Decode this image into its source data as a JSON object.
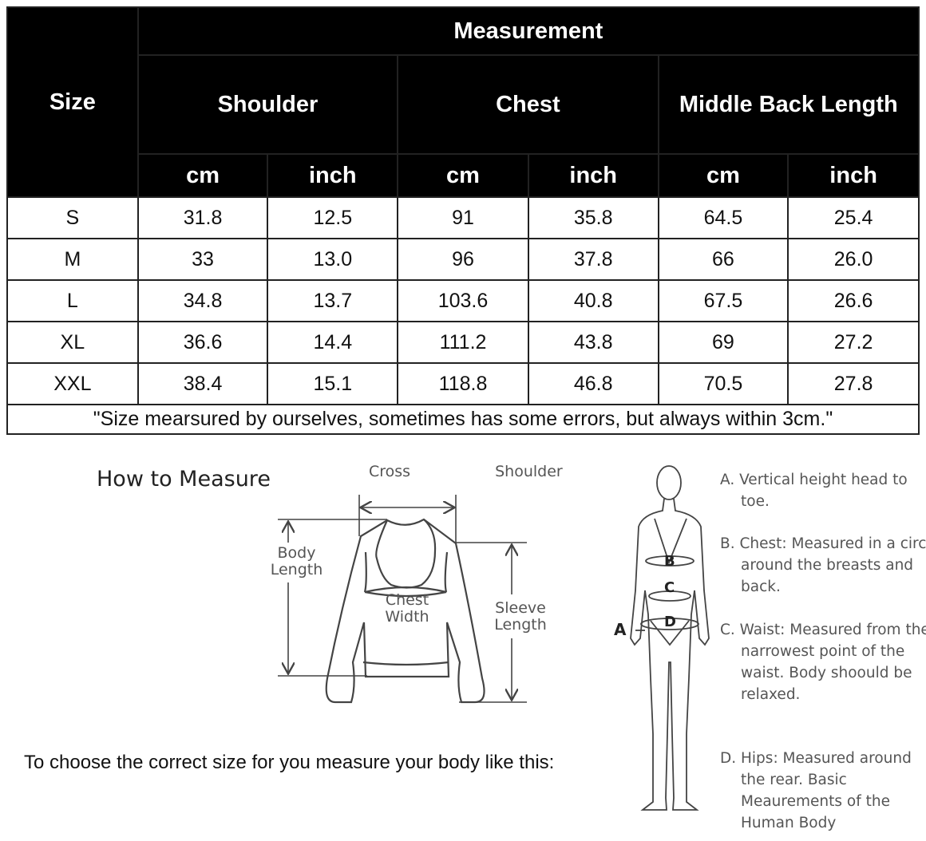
{
  "table": {
    "size_header": "Size",
    "measurement_header": "Measurement",
    "groups": [
      "Shoulder",
      "Chest",
      "Middle Back Length"
    ],
    "units": [
      "cm",
      "inch",
      "cm",
      "inch",
      "cm",
      "inch"
    ],
    "rows": [
      [
        "S",
        "31.8",
        "12.5",
        "91",
        "35.8",
        "64.5",
        "25.4"
      ],
      [
        "M",
        "33",
        "13.0",
        "96",
        "37.8",
        "66",
        "26.0"
      ],
      [
        "L",
        "34.8",
        "13.7",
        "103.6",
        "40.8",
        "67.5",
        "26.6"
      ],
      [
        "XL",
        "36.6",
        "14.4",
        "111.2",
        "43.8",
        "69",
        "27.2"
      ],
      [
        "XXL",
        "38.4",
        "15.1",
        "118.8",
        "46.8",
        "70.5",
        "27.8"
      ]
    ],
    "note": "\"Size mearsured by ourselves, sometimes has some errors, but always within 3cm.\""
  },
  "guide": {
    "title": "How to Measure",
    "instruction": "To choose the correct size for you measure your body like this:",
    "garment_labels": {
      "cross_shoulder": "Cross Shoulder",
      "body_length": "Body Length",
      "chest_width": "Chest Width",
      "sleeve_length": "Sleeve Length"
    },
    "body_markers": {
      "a": "A",
      "b": "B",
      "c": "C",
      "d": "D"
    },
    "definitions": [
      "A. Vertical height head to toe.",
      "B. Chest: Measured in a circle around the breasts and back.",
      "C. Waist: Measured from the narrowest point of the waist. Body shoould be relaxed.",
      "D. Hips: Measured around the rear. Basic Meaurements of the Human Body"
    ]
  },
  "colors": {
    "header_bg": "#000000",
    "header_text": "#ffffff",
    "line_art": "#444444"
  }
}
